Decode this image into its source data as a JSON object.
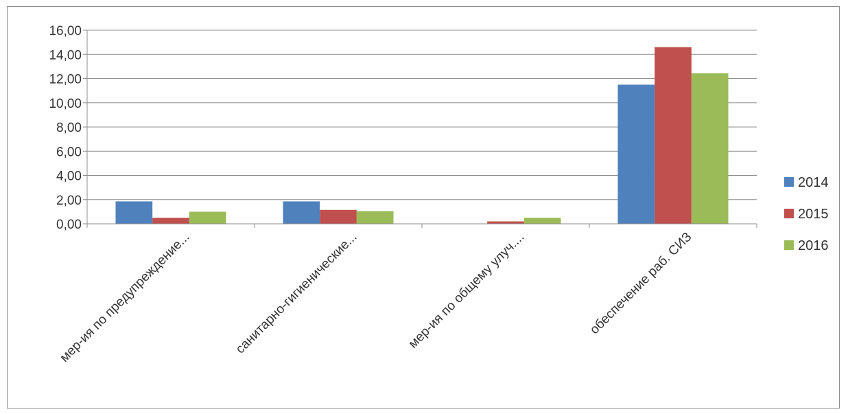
{
  "chart_data": {
    "type": "bar",
    "categories": [
      "мер-ия по предупреждение...",
      "санитарно-гигиенические...",
      "мер-ия по общему улуч....",
      "обеспечение раб. СИЗ"
    ],
    "series": [
      {
        "name": "2014",
        "values": [
          1.85,
          1.85,
          0.0,
          11.5
        ],
        "color": "#4f81bd"
      },
      {
        "name": "2015",
        "values": [
          0.5,
          1.15,
          0.2,
          14.6
        ],
        "color": "#c0504d"
      },
      {
        "name": "2016",
        "values": [
          1.0,
          1.05,
          0.5,
          12.45
        ],
        "color": "#9bbb59"
      }
    ],
    "yticks": [
      "0,00",
      "2,00",
      "4,00",
      "6,00",
      "8,00",
      "10,00",
      "12,00",
      "14,00",
      "16,00"
    ],
    "ylim": [
      0,
      16
    ],
    "grid": true,
    "legend_position": "right"
  }
}
